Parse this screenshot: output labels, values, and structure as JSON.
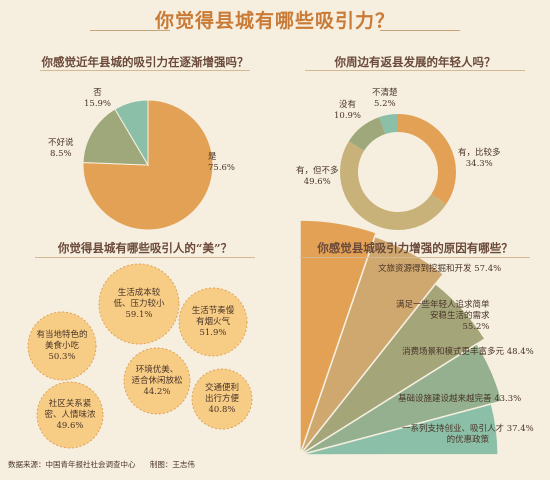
{
  "title": "你觉得县城有哪些吸引力？",
  "source": {
    "data_source": "数据来源：中国青年报社社会调查中心",
    "author": "制图：王志伟"
  },
  "chart_data": [
    {
      "type": "pie",
      "title": "你感觉近年县城的吸引力在逐渐增强吗？",
      "categories": [
        "是",
        "否",
        "不好说"
      ],
      "values": [
        75.6,
        15.9,
        8.5
      ],
      "value_labels": [
        "75.6%",
        "15.9%",
        "8.5%"
      ],
      "colors": [
        "#e3a156",
        "#9fa87a",
        "#8cbfa7"
      ]
    },
    {
      "type": "pie",
      "subtype": "donut",
      "title": "你周边有返县发展的年轻人吗？",
      "categories": [
        "有，比较多",
        "有，但不多",
        "没有",
        "不清楚"
      ],
      "values": [
        34.3,
        49.6,
        10.9,
        5.2
      ],
      "value_labels": [
        "34.3%",
        "49.6%",
        "10.9%",
        "5.2%"
      ],
      "colors": [
        "#e3a156",
        "#c9b27a",
        "#9fa87a",
        "#8cbfa7"
      ]
    },
    {
      "type": "bubble",
      "title": "你觉得县城有哪些吸引人的“美”？",
      "items": [
        {
          "lines": [
            "生活成本较",
            "低、压力较小"
          ],
          "value": "59.1%"
        },
        {
          "lines": [
            "生活节奏慢",
            "有烟火气"
          ],
          "value": "51.9%"
        },
        {
          "lines": [
            "有当地特色的",
            "美食小吃"
          ],
          "value": "50.3%"
        },
        {
          "lines": [
            "环境优美、",
            "适合休闲放松"
          ],
          "value": "44.2%"
        },
        {
          "lines": [
            "交通便利",
            "出行方便"
          ],
          "value": "40.8%"
        },
        {
          "lines": [
            "社区关系紧",
            "密、人情味浓"
          ],
          "value": "49.6%"
        }
      ]
    },
    {
      "type": "fan",
      "title": "你感觉县城吸引力增强的原因有哪些？",
      "items": [
        {
          "lines": [
            "文旅资源得到挖掘和开发 57.4%"
          ],
          "value": 57.4
        },
        {
          "lines": [
            "满足一些年轻人追求简单",
            "安稳生活的需求",
            "55.2%"
          ],
          "value": 55.2
        },
        {
          "lines": [
            "消费场景和模式更丰富多元 48.4%"
          ],
          "value": 48.4
        },
        {
          "lines": [
            "基础设施建设越来越完善 43.3%"
          ],
          "value": 43.3
        },
        {
          "lines": [
            "一系列支持创业、吸引人才 37.4%",
            "的优惠政策"
          ],
          "value": 37.4
        }
      ],
      "colors": [
        "#e3a156",
        "#cfa86f",
        "#a5a57a",
        "#94b08e",
        "#8cbfa7"
      ]
    }
  ]
}
